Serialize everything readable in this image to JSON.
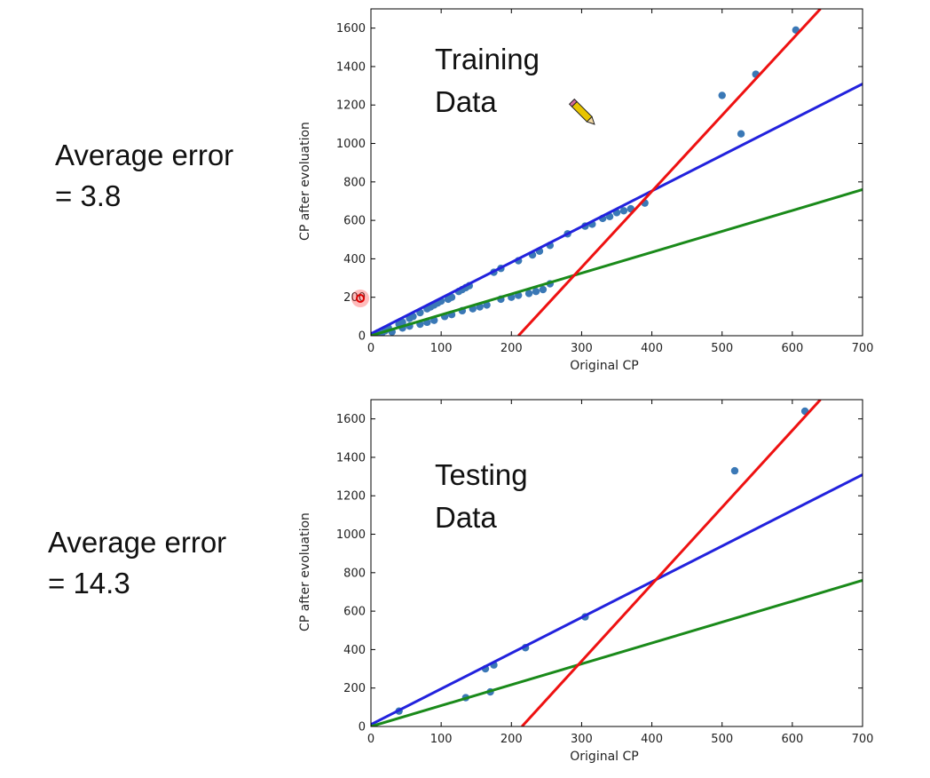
{
  "errors": [
    {
      "label": "Average error",
      "value": "= 3.8"
    },
    {
      "label": "Average error",
      "value": "= 14.3"
    }
  ],
  "chart_data": [
    {
      "type": "scatter",
      "annotation": [
        "Training",
        "Data"
      ],
      "xlabel": "Original CP",
      "ylabel": "CP after evoluation",
      "xlim": [
        0,
        700
      ],
      "ylim": [
        0,
        1700
      ],
      "xticks": [
        0,
        100,
        200,
        300,
        400,
        500,
        600,
        700
      ],
      "yticks": [
        0,
        200,
        400,
        600,
        800,
        1000,
        1200,
        1400,
        1600
      ],
      "grid": false,
      "points": [
        [
          10,
          15
        ],
        [
          20,
          25
        ],
        [
          25,
          40
        ],
        [
          40,
          60
        ],
        [
          45,
          70
        ],
        [
          55,
          90
        ],
        [
          60,
          100
        ],
        [
          70,
          120
        ],
        [
          80,
          140
        ],
        [
          85,
          150
        ],
        [
          90,
          160
        ],
        [
          95,
          170
        ],
        [
          100,
          180
        ],
        [
          110,
          190
        ],
        [
          115,
          200
        ],
        [
          125,
          230
        ],
        [
          130,
          240
        ],
        [
          135,
          250
        ],
        [
          140,
          260
        ],
        [
          175,
          330
        ],
        [
          185,
          350
        ],
        [
          210,
          390
        ],
        [
          230,
          420
        ],
        [
          240,
          440
        ],
        [
          255,
          470
        ],
        [
          280,
          530
        ],
        [
          305,
          570
        ],
        [
          315,
          580
        ],
        [
          330,
          610
        ],
        [
          340,
          620
        ],
        [
          350,
          640
        ],
        [
          360,
          650
        ],
        [
          370,
          660
        ],
        [
          390,
          690
        ],
        [
          15,
          10
        ],
        [
          30,
          20
        ],
        [
          45,
          40
        ],
        [
          55,
          50
        ],
        [
          70,
          60
        ],
        [
          80,
          70
        ],
        [
          90,
          80
        ],
        [
          105,
          100
        ],
        [
          115,
          110
        ],
        [
          130,
          130
        ],
        [
          145,
          140
        ],
        [
          155,
          150
        ],
        [
          165,
          160
        ],
        [
          185,
          190
        ],
        [
          200,
          200
        ],
        [
          210,
          210
        ],
        [
          225,
          220
        ],
        [
          235,
          230
        ],
        [
          245,
          240
        ],
        [
          255,
          270
        ],
        [
          500,
          1250
        ],
        [
          527,
          1050
        ],
        [
          548,
          1360
        ],
        [
          605,
          1590
        ]
      ],
      "series": [
        {
          "color": "#2222dd",
          "x": [
            0,
            700
          ],
          "y": [
            10,
            1310
          ]
        },
        {
          "color": "#1a8a1a",
          "x": [
            0,
            700
          ],
          "y": [
            0,
            760
          ]
        },
        {
          "color": "#ee1111",
          "x": [
            210,
            640
          ],
          "y": [
            0,
            1700
          ]
        }
      ],
      "point_color": "#3a78b6"
    },
    {
      "type": "scatter",
      "annotation": [
        "Testing",
        "Data"
      ],
      "xlabel": "Original CP",
      "ylabel": "CP after evoluation",
      "xlim": [
        0,
        700
      ],
      "ylim": [
        0,
        1700
      ],
      "xticks": [
        0,
        100,
        200,
        300,
        400,
        500,
        600,
        700
      ],
      "yticks": [
        0,
        200,
        400,
        600,
        800,
        1000,
        1200,
        1400,
        1600
      ],
      "grid": false,
      "points": [
        [
          40,
          80
        ],
        [
          135,
          150
        ],
        [
          170,
          180
        ],
        [
          163,
          300
        ],
        [
          175,
          320
        ],
        [
          220,
          410
        ],
        [
          305,
          570
        ],
        [
          518,
          1330
        ],
        [
          618,
          1640
        ]
      ],
      "series": [
        {
          "color": "#2222dd",
          "x": [
            0,
            700
          ],
          "y": [
            10,
            1310
          ]
        },
        {
          "color": "#1a8a1a",
          "x": [
            0,
            700
          ],
          "y": [
            0,
            760
          ]
        },
        {
          "color": "#ee1111",
          "x": [
            215,
            640
          ],
          "y": [
            0,
            1700
          ]
        }
      ],
      "point_color": "#3a78b6"
    }
  ]
}
